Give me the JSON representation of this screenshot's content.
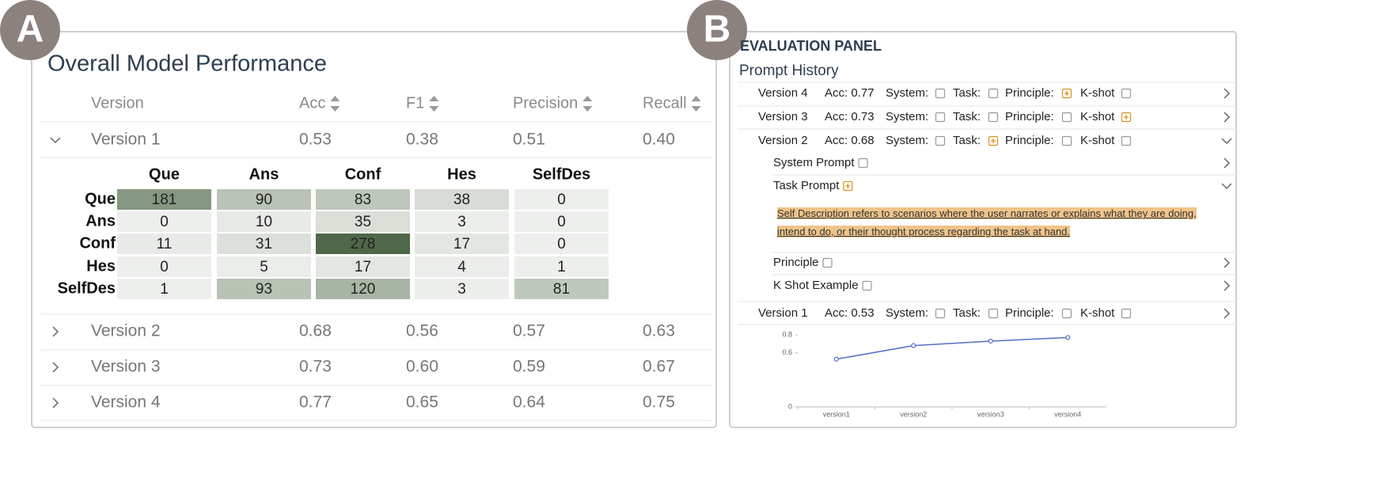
{
  "panel_a": {
    "badge": "A",
    "title": "Overall Model Performance",
    "columns": [
      "Version",
      "Acc",
      "F1",
      "Precision",
      "Recall"
    ],
    "rows": [
      [
        "Version 1",
        "0.53",
        "0.38",
        "0.51",
        "0.40"
      ],
      [
        "Version 2",
        "0.68",
        "0.56",
        "0.57",
        "0.63"
      ],
      [
        "Version 3",
        "0.73",
        "0.60",
        "0.59",
        "0.67"
      ],
      [
        "Version 4",
        "0.77",
        "0.65",
        "0.64",
        "0.75"
      ]
    ],
    "confusion_matrix": {
      "labels": [
        "Que",
        "Ans",
        "Conf",
        "Hes",
        "SelfDes"
      ],
      "values": [
        [
          181,
          90,
          83,
          38,
          0
        ],
        [
          0,
          10,
          35,
          3,
          0
        ],
        [
          11,
          31,
          278,
          17,
          0
        ],
        [
          0,
          5,
          17,
          4,
          1
        ],
        [
          1,
          93,
          120,
          3,
          81
        ]
      ]
    }
  },
  "panel_b": {
    "badge": "B",
    "title": "EVALUATION PANEL",
    "subtitle": "Prompt History",
    "versions": [
      {
        "name": "Version 4",
        "acc": "Acc: 0.77",
        "fields": [
          {
            "label": "System:",
            "added": false
          },
          {
            "label": "Task:",
            "added": false
          },
          {
            "label": "Principle:",
            "added": true
          },
          {
            "label": "K-shot",
            "added": false
          }
        ]
      },
      {
        "name": "Version 3",
        "acc": "Acc: 0.73",
        "fields": [
          {
            "label": "System:",
            "added": false
          },
          {
            "label": "Task:",
            "added": false
          },
          {
            "label": "Principle:",
            "added": false
          },
          {
            "label": "K-shot",
            "added": true
          }
        ]
      },
      {
        "name": "Version 2",
        "acc": "Acc: 0.68",
        "fields": [
          {
            "label": "System:",
            "added": false
          },
          {
            "label": "Task:",
            "added": true
          },
          {
            "label": "Principle:",
            "added": false
          },
          {
            "label": "K-shot",
            "added": false
          }
        ],
        "details": [
          {
            "label": "System Prompt",
            "added": false
          },
          {
            "label": "Task Prompt",
            "added": true,
            "text": "Self Description refers to scenarios where the user narrates or explains what they are doing, intend to do, or their thought process regarding the task at hand."
          },
          {
            "label": "Principle",
            "added": false
          },
          {
            "label": "K Shot Example",
            "added": false
          }
        ]
      },
      {
        "name": "Version 1",
        "acc": "Acc: 0.53",
        "fields": [
          {
            "label": "System:",
            "added": false
          },
          {
            "label": "Task:",
            "added": false
          },
          {
            "label": "Principle:",
            "added": false
          },
          {
            "label": "K-shot",
            "added": false
          }
        ]
      }
    ],
    "chart_data": {
      "type": "line",
      "categories": [
        "version1",
        "version2",
        "version3",
        "version4"
      ],
      "values": [
        0.53,
        0.68,
        0.73,
        0.77
      ],
      "color": "#5470c6",
      "ylim": [
        0,
        0.8
      ],
      "yticks": [
        0,
        0.6,
        0.8
      ]
    }
  }
}
